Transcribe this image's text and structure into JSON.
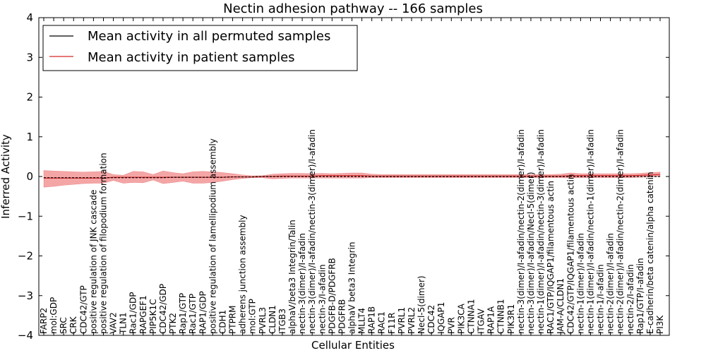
{
  "chart_data": {
    "type": "line",
    "title": "Nectin adhesion pathway -- 166 samples",
    "xlabel": "Cellular Entities",
    "ylabel": "Inferred Activity",
    "ylim": [
      -4,
      4
    ],
    "yticks": [
      -4,
      -3,
      -2,
      -1,
      0,
      1,
      2,
      3,
      4
    ],
    "ytick_labels": [
      "−4",
      "−3",
      "−2",
      "−1",
      "0",
      "1",
      "2",
      "3",
      "4"
    ],
    "legend_position": "top-left",
    "colors": {
      "permuted": "#000000",
      "patient": "#d62728",
      "band": "#f08080"
    },
    "categories": [
      "FARP2",
      "mol:GDP",
      "SRC",
      "CRK",
      "CDC42/GTP",
      "positive regulation of JNK cascade",
      "positive regulation of filopodium formation",
      "VAV2",
      "TLN1",
      "Rac1/GDP",
      "RAPGEF1",
      "PIP5K1C",
      "CDC42/GDP",
      "PTK2",
      "Rap1/GTP",
      "Rac1/GTP",
      "RAP1/GDP",
      "positive regulation of lamellipodium assembly",
      "CDH1",
      "PTPRM",
      "adherens junction assembly",
      "mol:GTP",
      "PVRL3",
      "CLDN1",
      "ITGB3",
      "alphaV/beta3 Integrin/Talin",
      "nectin-3(dimer)/I-afadin",
      "nectin-3(dimer)/I-afadin/nectin-3(dimer)/I-afadin",
      "nectin-3/I-afadin",
      "PDGFB-D/PDGFRB",
      "PDGFRB",
      "alphaV beta3 Integrin",
      "MLLT4",
      "RAP1B",
      "RAC1",
      "F11R",
      "PVRL1",
      "PVRL2",
      "Necl-5(dimer)",
      "CDC42",
      "IQGAP1",
      "PVR",
      "PIK3CA",
      "CTNNA1",
      "ITGAV",
      "RAP1A",
      "CTNNB1",
      "PIK3R1",
      "nectin-3(dimer)/I-afadin/nectin-2(dimer)/I-afadin",
      "nectin-3(dimer)/I-afadin/Necl-5(dimer)",
      "nectin-1(dimer)/I-afadin/nectin-3(dimer)/I-afadin",
      "RAC1/GTP/IQGAP1/filamentous actin",
      "JAM-A/CLDN1",
      "CDC42/GTP/IQGAP1/filamentous actin",
      "nectin-1(dimer)/I-afadin",
      "nectin-1(dimer)/I-afadin/nectin-1(dimer)/I-afadin",
      "nectin-1/I-afadin",
      "nectin-2(dimer)/I-afadin",
      "nectin-2(dimer)/I-afadin/nectin-2(dimer)/I-afadin",
      "nectin-2/I-afadin",
      "Rap1/GTP/I-afadin",
      "E-cadherin/beta catenin/alpha catenin",
      "PI3K"
    ],
    "series": [
      {
        "name": "Mean activity in all permuted samples",
        "values": [
          -0.03,
          -0.03,
          -0.03,
          -0.03,
          -0.03,
          -0.03,
          -0.03,
          -0.03,
          -0.03,
          -0.03,
          -0.03,
          -0.03,
          -0.03,
          -0.02,
          -0.02,
          -0.02,
          -0.02,
          -0.02,
          -0.02,
          -0.01,
          -0.01,
          -0.01,
          0,
          0,
          0,
          0,
          0,
          0,
          0,
          0,
          0,
          0,
          0,
          0,
          0,
          0,
          0,
          0,
          0,
          0,
          0,
          0,
          0,
          0,
          0,
          0,
          0,
          0,
          0,
          0,
          0,
          0,
          0,
          0,
          0,
          0,
          0,
          0,
          0,
          0,
          0,
          0,
          0
        ]
      },
      {
        "name": "Mean activity in patient samples",
        "values": [
          -0.04,
          -0.04,
          -0.04,
          -0.04,
          -0.04,
          -0.04,
          -0.04,
          -0.02,
          -0.02,
          -0.02,
          -0.02,
          -0.02,
          -0.02,
          -0.02,
          -0.02,
          -0.02,
          -0.02,
          -0.02,
          -0.02,
          -0.01,
          -0.01,
          -0.01,
          0,
          0,
          0.01,
          0.01,
          0.01,
          0.01,
          0.02,
          0.02,
          0.02,
          0.02,
          0.02,
          0.01,
          0.01,
          0.01,
          0.01,
          0.01,
          0.01,
          0.01,
          0.01,
          0.01,
          0.01,
          0.01,
          0.01,
          0.01,
          0.01,
          0.01,
          0.01,
          0.01,
          0.01,
          0.01,
          0.01,
          0.02,
          0.02,
          0.02,
          0.02,
          0.02,
          0.02,
          0.02,
          0.03,
          0.04,
          0.05
        ]
      },
      {
        "name": "patient band upper",
        "values": [
          0.15,
          0.14,
          0.13,
          0.12,
          0.11,
          0.12,
          0.13,
          0.05,
          0.03,
          0.13,
          0.12,
          0.05,
          0.14,
          0.1,
          0.07,
          0.12,
          0.13,
          0.12,
          0.1,
          0.07,
          0.04,
          0.02,
          0.02,
          0.06,
          0.07,
          0.08,
          0.08,
          0.07,
          0.08,
          0.07,
          0.08,
          0.09,
          0.09,
          0.06,
          0.05,
          0.05,
          0.05,
          0.05,
          0.05,
          0.05,
          0.05,
          0.05,
          0.05,
          0.05,
          0.05,
          0.05,
          0.05,
          0.05,
          0.05,
          0.05,
          0.05,
          0.05,
          0.06,
          0.09,
          0.07,
          0.07,
          0.07,
          0.07,
          0.07,
          0.07,
          0.08,
          0.1,
          0.11
        ]
      },
      {
        "name": "patient band lower",
        "values": [
          -0.27,
          -0.25,
          -0.22,
          -0.2,
          -0.18,
          -0.17,
          -0.17,
          -0.1,
          -0.17,
          -0.15,
          -0.16,
          -0.09,
          -0.18,
          -0.15,
          -0.12,
          -0.17,
          -0.17,
          -0.15,
          -0.12,
          -0.08,
          -0.05,
          -0.03,
          -0.03,
          -0.06,
          -0.05,
          -0.04,
          -0.04,
          -0.04,
          -0.04,
          -0.04,
          -0.04,
          -0.04,
          -0.04,
          -0.03,
          -0.03,
          -0.03,
          -0.03,
          -0.03,
          -0.03,
          -0.03,
          -0.03,
          -0.03,
          -0.03,
          -0.03,
          -0.03,
          -0.03,
          -0.03,
          -0.03,
          -0.03,
          -0.03,
          -0.03,
          -0.03,
          -0.03,
          -0.04,
          -0.03,
          -0.03,
          -0.03,
          -0.03,
          -0.03,
          -0.03,
          -0.02,
          -0.01,
          0
        ]
      }
    ]
  }
}
